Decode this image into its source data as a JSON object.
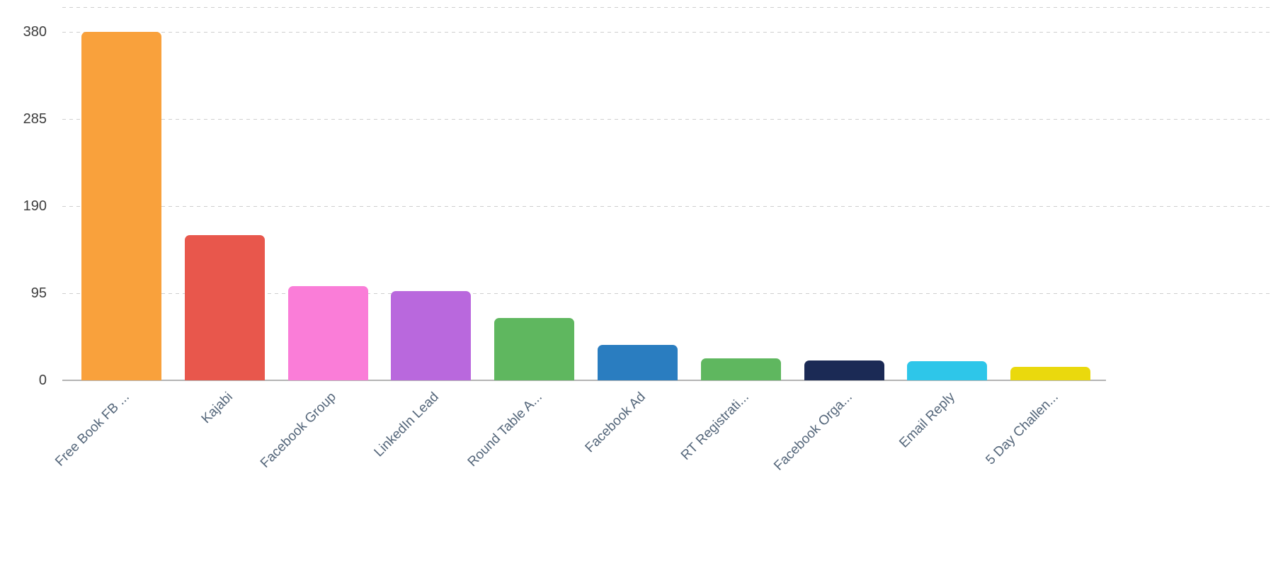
{
  "chart_data": {
    "type": "bar",
    "categories": [
      "Free Book FB ...",
      "Kajabi",
      "Facebook Group",
      "LinkedIn Lead",
      "Round Table A...",
      "Facebook Ad",
      "RT Registrati...",
      "Facebook Orga...",
      "Email Reply",
      "5 Day Challen..."
    ],
    "values": [
      380,
      158,
      103,
      97,
      68,
      39,
      24,
      22,
      21,
      15
    ],
    "bar_colors": [
      "#F9A13C",
      "#E8574C",
      "#FA7DD8",
      "#B968DD",
      "#5FB75F",
      "#2A7DC0",
      "#5FB75F",
      "#1B2A55",
      "#2EC6E9",
      "#EAD90D"
    ],
    "title": "",
    "xlabel": "",
    "ylabel": "",
    "ylim": [
      0,
      380
    ],
    "yticks": [
      0,
      95,
      190,
      285,
      380
    ],
    "ytick_labels": [
      "0",
      "95",
      "190",
      "285",
      "380"
    ],
    "grid": "horizontal-dashed",
    "legend": "none"
  },
  "colors": {
    "background": "#ffffff",
    "gridline": "#cfcfcf",
    "axis_line": "#b4b4b4",
    "ytick_text": "#3d3d3d",
    "category_text": "#54667a"
  }
}
